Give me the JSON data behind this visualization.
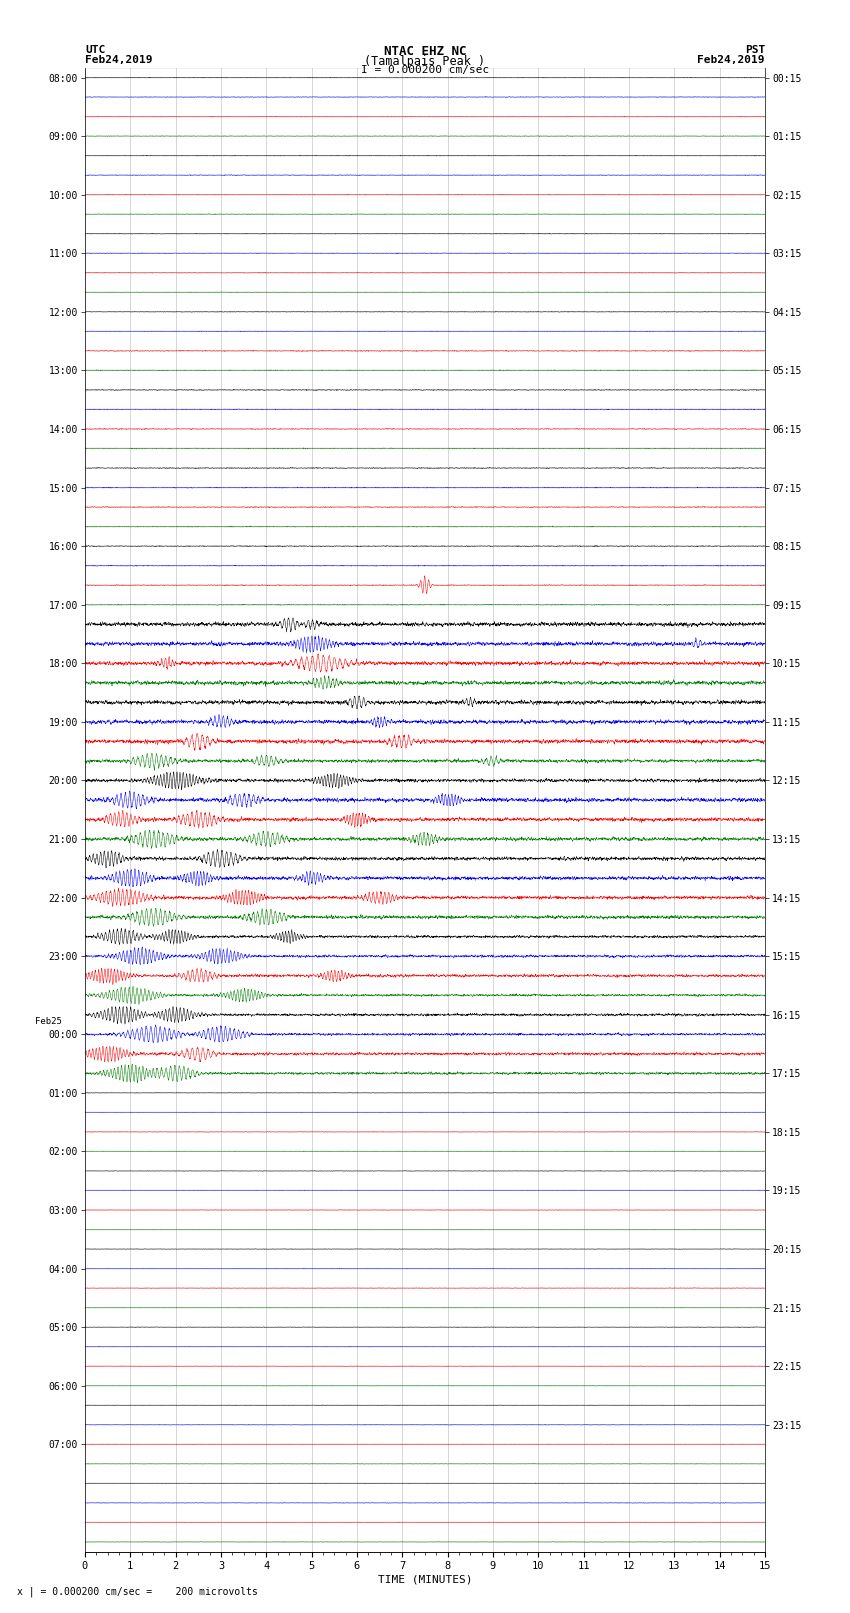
{
  "title_line1": "NTAC EHZ NC",
  "title_line2": "(Tamalpais Peak )",
  "scale_label": "I = 0.000200 cm/sec",
  "footer_label": "x | = 0.000200 cm/sec =    200 microvolts",
  "xlabel": "TIME (MINUTES)",
  "left_times": [
    "08:00",
    "",
    "",
    "09:00",
    "",
    "",
    "10:00",
    "",
    "",
    "11:00",
    "",
    "",
    "12:00",
    "",
    "",
    "13:00",
    "",
    "",
    "14:00",
    "",
    "",
    "15:00",
    "",
    "",
    "16:00",
    "",
    "",
    "17:00",
    "",
    "",
    "18:00",
    "",
    "",
    "19:00",
    "",
    "",
    "20:00",
    "",
    "",
    "21:00",
    "",
    "",
    "22:00",
    "",
    "",
    "23:00",
    "",
    "",
    "Feb25",
    "00:00",
    "",
    "",
    "01:00",
    "",
    "",
    "02:00",
    "",
    "",
    "03:00",
    "",
    "",
    "04:00",
    "",
    "",
    "05:00",
    "",
    "",
    "06:00",
    "",
    "",
    "07:00",
    "",
    ""
  ],
  "right_times": [
    "00:15",
    "",
    "",
    "01:15",
    "",
    "",
    "02:15",
    "",
    "",
    "03:15",
    "",
    "",
    "04:15",
    "",
    "",
    "05:15",
    "",
    "",
    "06:15",
    "",
    "",
    "07:15",
    "",
    "",
    "08:15",
    "",
    "",
    "09:15",
    "",
    "",
    "10:15",
    "",
    "",
    "11:15",
    "",
    "",
    "12:15",
    "",
    "",
    "13:15",
    "",
    "",
    "14:15",
    "",
    "",
    "15:15",
    "",
    "",
    "16:15",
    "",
    "",
    "17:15",
    "",
    "",
    "18:15",
    "",
    "",
    "19:15",
    "",
    "",
    "20:15",
    "",
    "",
    "21:15",
    "",
    "",
    "22:15",
    "",
    "",
    "23:15",
    "",
    ""
  ],
  "n_rows": 76,
  "row_colors_pattern": [
    "black",
    "blue",
    "red",
    "green"
  ],
  "time_min": 0,
  "time_max": 15,
  "bg_color": "white",
  "grid_color": "#999999",
  "random_seed": 42
}
